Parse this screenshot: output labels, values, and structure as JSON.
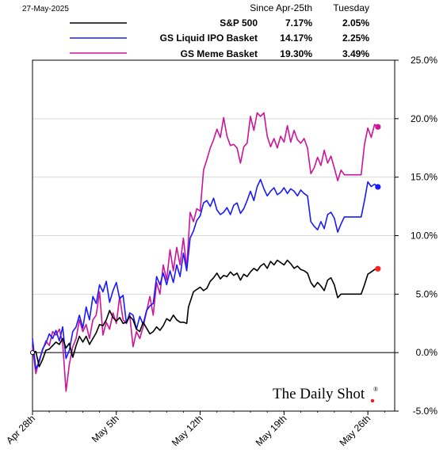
{
  "date_label": "27-May-2025",
  "legend": {
    "headers": [
      "Since Apr-25th",
      "Tuesday"
    ],
    "rows": [
      {
        "name": "S&P 500",
        "since": "7.17%",
        "tuesday": "2.05%",
        "color": "#000000"
      },
      {
        "name": "GS Liquid IPO Basket",
        "since": "14.17%",
        "tuesday": "2.25%",
        "color": "#1a1aff"
      },
      {
        "name": "GS Meme Basket",
        "since": "19.30%",
        "tuesday": "3.49%",
        "color": "#cc1599"
      }
    ]
  },
  "brand": "The Daily Shot",
  "brand_mark": "®",
  "chart_data": {
    "type": "line",
    "x_tick_labels": [
      "Apr 28th",
      "May 5th",
      "May 12th",
      "May 19th",
      "May 26th"
    ],
    "y_tick_labels": [
      "25.0%",
      "20.0%",
      "15.0%",
      "10.0%",
      "5.0%",
      "0.0%",
      "-5.0%"
    ],
    "ylim": [
      -5,
      25
    ],
    "y_axis_position": "right",
    "grid": "horizontal",
    "x_unit": "trading days since Apr 25",
    "series": [
      {
        "name": "S&P 500",
        "color": "#000000",
        "end_marker_color": "#ff2020",
        "points": [
          [
            0,
            0
          ],
          [
            0.2,
            0.1
          ],
          [
            0.4,
            -1.2
          ],
          [
            0.6,
            -0.6
          ],
          [
            0.8,
            0.2
          ],
          [
            1.0,
            0.3
          ],
          [
            1.2,
            0.6
          ],
          [
            1.4,
            0.9
          ],
          [
            1.6,
            0.7
          ],
          [
            1.8,
            1.2
          ],
          [
            2.0,
            0.4
          ],
          [
            2.2,
            0.8
          ],
          [
            2.4,
            -0.4
          ],
          [
            2.6,
            0.6
          ],
          [
            2.8,
            1.4
          ],
          [
            3.0,
            0.9
          ],
          [
            3.2,
            1.4
          ],
          [
            3.4,
            0.7
          ],
          [
            3.6,
            1.2
          ],
          [
            3.8,
            1.7
          ],
          [
            4.0,
            2.4
          ],
          [
            4.2,
            2.3
          ],
          [
            4.4,
            2.8
          ],
          [
            4.6,
            3.6
          ],
          [
            4.8,
            3.0
          ],
          [
            5.0,
            2.7
          ],
          [
            5.2,
            3.0
          ],
          [
            5.4,
            2.5
          ],
          [
            5.6,
            2.6
          ],
          [
            5.8,
            3.1
          ],
          [
            6.0,
            2.8
          ],
          [
            6.2,
            2.0
          ],
          [
            6.4,
            1.8
          ],
          [
            6.6,
            2.6
          ],
          [
            6.8,
            2.1
          ],
          [
            7.0,
            1.6
          ],
          [
            7.2,
            1.8
          ],
          [
            7.4,
            2.2
          ],
          [
            7.6,
            1.9
          ],
          [
            7.8,
            2.3
          ],
          [
            8.0,
            2.9
          ],
          [
            8.2,
            2.7
          ],
          [
            8.4,
            3.2
          ],
          [
            8.6,
            2.8
          ],
          [
            8.8,
            2.6
          ],
          [
            9.0,
            2.6
          ],
          [
            9.2,
            2.5
          ],
          [
            9.3,
            3.9
          ],
          [
            9.6,
            5.2
          ],
          [
            9.8,
            5.4
          ],
          [
            10.0,
            5.6
          ],
          [
            10.2,
            5.3
          ],
          [
            10.4,
            5.5
          ],
          [
            10.6,
            6.1
          ],
          [
            10.8,
            6.4
          ],
          [
            11.0,
            6.8
          ],
          [
            11.2,
            6.3
          ],
          [
            11.4,
            6.6
          ],
          [
            11.6,
            6.5
          ],
          [
            11.8,
            6.9
          ],
          [
            12.0,
            6.6
          ],
          [
            12.2,
            6.8
          ],
          [
            12.4,
            6.2
          ],
          [
            12.6,
            6.7
          ],
          [
            12.8,
            6.5
          ],
          [
            13.0,
            6.9
          ],
          [
            13.2,
            7.2
          ],
          [
            13.4,
            7.0
          ],
          [
            13.6,
            7.4
          ],
          [
            13.8,
            7.6
          ],
          [
            14.0,
            7.2
          ],
          [
            14.2,
            7.8
          ],
          [
            14.4,
            7.5
          ],
          [
            14.6,
            7.9
          ],
          [
            14.8,
            7.7
          ],
          [
            15.0,
            7.5
          ],
          [
            15.2,
            7.9
          ],
          [
            15.4,
            7.6
          ],
          [
            15.6,
            7.2
          ],
          [
            15.8,
            7.4
          ],
          [
            16.0,
            7.1
          ],
          [
            16.2,
            7.0
          ],
          [
            16.4,
            6.8
          ],
          [
            16.6,
            6.0
          ],
          [
            16.8,
            5.6
          ],
          [
            17.0,
            6.0
          ],
          [
            17.2,
            5.7
          ],
          [
            17.4,
            5.3
          ],
          [
            17.6,
            6.2
          ],
          [
            17.8,
            6.4
          ],
          [
            18.0,
            5.8
          ],
          [
            18.2,
            4.7
          ],
          [
            18.4,
            5.0
          ],
          [
            18.6,
            5.0
          ],
          [
            19.0,
            5.0
          ],
          [
            19.4,
            5.0
          ],
          [
            19.6,
            5.0
          ],
          [
            19.8,
            5.8
          ],
          [
            20.0,
            6.7
          ],
          [
            20.2,
            6.9
          ],
          [
            20.4,
            7.1
          ],
          [
            20.6,
            7.17
          ]
        ]
      },
      {
        "name": "GS Liquid IPO Basket",
        "color": "#1a1aff",
        "end_marker_color": "#1a1aff",
        "points": [
          [
            0,
            1.2
          ],
          [
            0.2,
            -1.4
          ],
          [
            0.4,
            -0.8
          ],
          [
            0.6,
            0.3
          ],
          [
            0.8,
            0.8
          ],
          [
            1.0,
            1.6
          ],
          [
            1.2,
            1.2
          ],
          [
            1.4,
            1.9
          ],
          [
            1.6,
            1.0
          ],
          [
            1.8,
            2.2
          ],
          [
            2.0,
            -0.5
          ],
          [
            2.2,
            0.2
          ],
          [
            2.4,
            1.8
          ],
          [
            2.6,
            2.2
          ],
          [
            2.8,
            3.2
          ],
          [
            3.0,
            2.1
          ],
          [
            3.2,
            3.9
          ],
          [
            3.4,
            2.8
          ],
          [
            3.6,
            4.8
          ],
          [
            3.8,
            4.2
          ],
          [
            4.0,
            5.8
          ],
          [
            4.2,
            5.2
          ],
          [
            4.4,
            6.1
          ],
          [
            4.6,
            4.3
          ],
          [
            4.8,
            5.3
          ],
          [
            5.0,
            6.0
          ],
          [
            5.2,
            4.6
          ],
          [
            5.4,
            4.9
          ],
          [
            5.6,
            2.5
          ],
          [
            5.8,
            3.4
          ],
          [
            6.0,
            3.2
          ],
          [
            6.2,
            2.0
          ],
          [
            6.4,
            3.1
          ],
          [
            6.6,
            2.4
          ],
          [
            6.8,
            3.6
          ],
          [
            7.0,
            4.0
          ],
          [
            7.2,
            4.2
          ],
          [
            7.4,
            6.5
          ],
          [
            7.6,
            5.8
          ],
          [
            7.8,
            6.8
          ],
          [
            8.0,
            5.8
          ],
          [
            8.2,
            7.0
          ],
          [
            8.4,
            6.0
          ],
          [
            8.6,
            7.5
          ],
          [
            8.8,
            6.5
          ],
          [
            9.0,
            8.5
          ],
          [
            9.2,
            7.0
          ],
          [
            9.4,
            9.8
          ],
          [
            9.6,
            10.4
          ],
          [
            9.8,
            11.3
          ],
          [
            10.0,
            11.7
          ],
          [
            10.2,
            12.8
          ],
          [
            10.4,
            13.0
          ],
          [
            10.6,
            12.5
          ],
          [
            10.8,
            13.2
          ],
          [
            11.0,
            12.2
          ],
          [
            11.2,
            11.8
          ],
          [
            11.4,
            12.0
          ],
          [
            11.6,
            12.4
          ],
          [
            11.8,
            11.8
          ],
          [
            12.0,
            12.6
          ],
          [
            12.2,
            12.8
          ],
          [
            12.4,
            11.9
          ],
          [
            12.6,
            12.3
          ],
          [
            12.8,
            13.0
          ],
          [
            13.0,
            13.8
          ],
          [
            13.2,
            13.0
          ],
          [
            13.4,
            14.2
          ],
          [
            13.6,
            14.8
          ],
          [
            13.8,
            14.0
          ],
          [
            14.0,
            13.4
          ],
          [
            14.2,
            13.8
          ],
          [
            14.4,
            14.1
          ],
          [
            14.6,
            13.5
          ],
          [
            14.8,
            13.7
          ],
          [
            15.0,
            14.1
          ],
          [
            15.2,
            13.6
          ],
          [
            15.4,
            14.0
          ],
          [
            15.6,
            13.8
          ],
          [
            15.8,
            13.4
          ],
          [
            16.0,
            13.9
          ],
          [
            16.2,
            13.6
          ],
          [
            16.4,
            13.4
          ],
          [
            16.6,
            11.2
          ],
          [
            16.8,
            10.8
          ],
          [
            17.0,
            10.5
          ],
          [
            17.2,
            11.2
          ],
          [
            17.4,
            10.6
          ],
          [
            17.6,
            11.8
          ],
          [
            17.8,
            12.0
          ],
          [
            18.0,
            11.5
          ],
          [
            18.2,
            10.3
          ],
          [
            18.4,
            11.0
          ],
          [
            18.6,
            11.6
          ],
          [
            19.0,
            11.6
          ],
          [
            19.4,
            11.6
          ],
          [
            19.6,
            11.6
          ],
          [
            19.8,
            13.0
          ],
          [
            20.0,
            14.6
          ],
          [
            20.2,
            14.2
          ],
          [
            20.4,
            14.4
          ],
          [
            20.6,
            14.17
          ]
        ]
      },
      {
        "name": "GS Meme Basket",
        "color": "#cc1599",
        "end_marker_color": "#cc1599",
        "points": [
          [
            0,
            0.5
          ],
          [
            0.2,
            -1.8
          ],
          [
            0.4,
            -0.6
          ],
          [
            0.6,
            0.2
          ],
          [
            0.8,
            1.0
          ],
          [
            1.0,
            0.6
          ],
          [
            1.2,
            1.8
          ],
          [
            1.4,
            1.5
          ],
          [
            1.6,
            2.0
          ],
          [
            1.8,
            0.8
          ],
          [
            2.0,
            -3.3
          ],
          [
            2.2,
            -1.0
          ],
          [
            2.4,
            0.5
          ],
          [
            2.6,
            1.2
          ],
          [
            2.8,
            2.8
          ],
          [
            3.0,
            1.8
          ],
          [
            3.2,
            2.4
          ],
          [
            3.4,
            1.2
          ],
          [
            3.6,
            2.8
          ],
          [
            3.8,
            3.2
          ],
          [
            4.0,
            5.2
          ],
          [
            4.2,
            1.5
          ],
          [
            4.4,
            2.6
          ],
          [
            4.6,
            2.0
          ],
          [
            4.8,
            3.4
          ],
          [
            5.0,
            2.5
          ],
          [
            5.2,
            4.8
          ],
          [
            5.4,
            2.8
          ],
          [
            5.6,
            2.5
          ],
          [
            5.8,
            3.2
          ],
          [
            6.0,
            0.5
          ],
          [
            6.2,
            1.8
          ],
          [
            6.4,
            1.2
          ],
          [
            6.6,
            2.2
          ],
          [
            6.8,
            3.5
          ],
          [
            7.0,
            4.8
          ],
          [
            7.2,
            3.2
          ],
          [
            7.4,
            6.0
          ],
          [
            7.6,
            5.0
          ],
          [
            7.8,
            7.5
          ],
          [
            8.0,
            6.2
          ],
          [
            8.2,
            8.8
          ],
          [
            8.4,
            7.0
          ],
          [
            8.6,
            9.0
          ],
          [
            8.8,
            7.5
          ],
          [
            9.0,
            9.8
          ],
          [
            9.2,
            7.2
          ],
          [
            9.4,
            12.0
          ],
          [
            9.6,
            11.2
          ],
          [
            9.8,
            12.3
          ],
          [
            10.0,
            12.1
          ],
          [
            10.2,
            15.6
          ],
          [
            10.4,
            16.5
          ],
          [
            10.6,
            17.5
          ],
          [
            10.8,
            18.2
          ],
          [
            11.0,
            19.1
          ],
          [
            11.2,
            18.4
          ],
          [
            11.4,
            20.1
          ],
          [
            11.6,
            18.5
          ],
          [
            11.8,
            17.7
          ],
          [
            12.0,
            17.8
          ],
          [
            12.2,
            17.5
          ],
          [
            12.4,
            16.2
          ],
          [
            12.6,
            17.6
          ],
          [
            12.8,
            17.9
          ],
          [
            13.0,
            20.2
          ],
          [
            13.2,
            19.0
          ],
          [
            13.4,
            20.5
          ],
          [
            13.6,
            20.2
          ],
          [
            13.8,
            20.5
          ],
          [
            14.0,
            18.5
          ],
          [
            14.2,
            17.6
          ],
          [
            14.4,
            18.3
          ],
          [
            14.6,
            17.5
          ],
          [
            14.8,
            18.5
          ],
          [
            15.0,
            18.0
          ],
          [
            15.2,
            19.4
          ],
          [
            15.4,
            18.0
          ],
          [
            15.6,
            19.0
          ],
          [
            15.8,
            18.2
          ],
          [
            16.0,
            17.9
          ],
          [
            16.2,
            18.3
          ],
          [
            16.4,
            17.5
          ],
          [
            16.6,
            15.3
          ],
          [
            16.8,
            15.8
          ],
          [
            17.0,
            16.7
          ],
          [
            17.2,
            16.0
          ],
          [
            17.4,
            17.3
          ],
          [
            17.6,
            16.2
          ],
          [
            17.8,
            16.8
          ],
          [
            18.0,
            15.8
          ],
          [
            18.2,
            14.7
          ],
          [
            18.4,
            15.6
          ],
          [
            18.6,
            15.2
          ],
          [
            19.0,
            15.2
          ],
          [
            19.4,
            15.2
          ],
          [
            19.6,
            15.2
          ],
          [
            19.8,
            17.8
          ],
          [
            20.0,
            19.2
          ],
          [
            20.2,
            18.4
          ],
          [
            20.4,
            19.5
          ],
          [
            20.6,
            19.3
          ]
        ]
      }
    ]
  }
}
